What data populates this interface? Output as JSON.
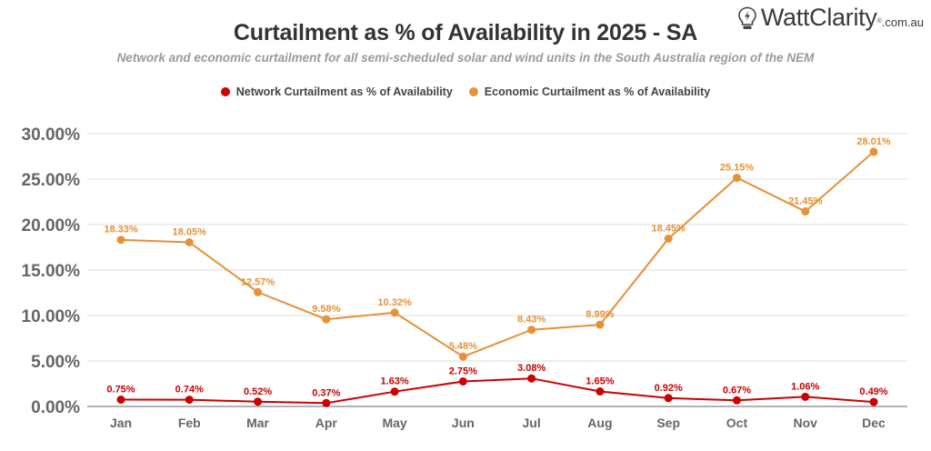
{
  "header": {
    "title": "Curtailment as % of Availability in 2025 - SA",
    "subtitle": "Network and economic curtailment for all semi-scheduled solar and wind units in the South Australia region of the NEM"
  },
  "logo": {
    "icon": "lightbulb-bolt-icon",
    "brand": "WattClarity",
    "registered": "®",
    "domain": ".com.au"
  },
  "legend": [
    {
      "label": "Network Curtailment as % of Availability",
      "color": "#cc0000"
    },
    {
      "label": "Economic Curtailment as % of Availability",
      "color": "#e69138"
    }
  ],
  "chart_data": {
    "type": "line",
    "title": "Curtailment as % of Availability in 2025 - SA",
    "subtitle": "Network and economic curtailment for all semi-scheduled solar and wind units in the South Australia region of the NEM",
    "xlabel": "",
    "ylabel": "",
    "categories": [
      "Jan",
      "Feb",
      "Mar",
      "Apr",
      "May",
      "Jun",
      "Jul",
      "Aug",
      "Sep",
      "Oct",
      "Nov",
      "Dec"
    ],
    "ylim": [
      0,
      30
    ],
    "yticks": [
      0,
      5,
      10,
      15,
      20,
      25,
      30
    ],
    "ytick_labels": [
      "0.00%",
      "5.00%",
      "10.00%",
      "15.00%",
      "20.00%",
      "25.00%",
      "30.00%"
    ],
    "grid": true,
    "legend_position": "top-center",
    "series": [
      {
        "name": "Network Curtailment as % of Availability",
        "color": "#cc0000",
        "values": [
          0.75,
          0.74,
          0.52,
          0.37,
          1.63,
          2.75,
          3.08,
          1.65,
          0.92,
          0.67,
          1.06,
          0.49
        ],
        "labels": [
          "0.75%",
          "0.74%",
          "0.52%",
          "0.37%",
          "1.63%",
          "2.75%",
          "3.08%",
          "1.65%",
          "0.92%",
          "0.67%",
          "1.06%",
          "0.49%"
        ]
      },
      {
        "name": "Economic Curtailment as % of Availability",
        "color": "#e69138",
        "values": [
          18.33,
          18.05,
          12.57,
          9.58,
          10.32,
          5.48,
          8.43,
          8.99,
          18.45,
          25.15,
          21.45,
          28.01
        ],
        "labels": [
          "18.33%",
          "18.05%",
          "12.57%",
          "9.58%",
          "10.32%",
          "5.48%",
          "8.43%",
          "8.99%",
          "18.45%",
          "25.15%",
          "21.45%",
          "28.01%"
        ]
      }
    ]
  }
}
